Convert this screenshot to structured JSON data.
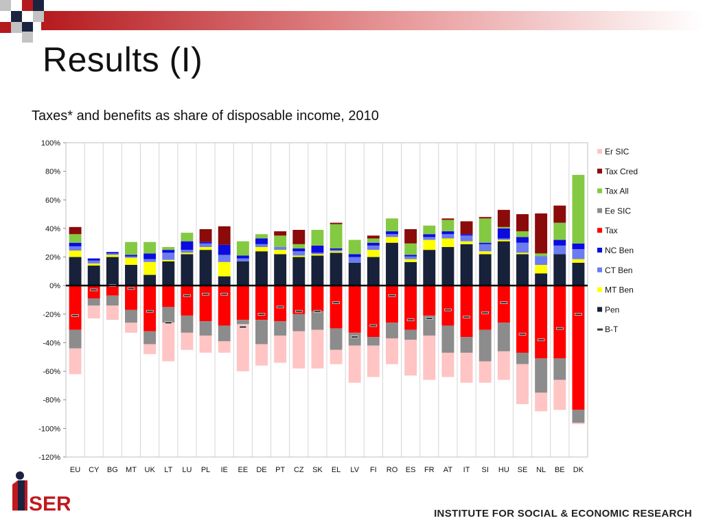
{
  "slide": {
    "title": "Results (I)",
    "subtitle": "Taxes* and benefits as share of disposable income, 2010",
    "logo_text": "iSER",
    "footer": "INSTITUTE FOR SOCIAL & ECONOMIC RESEARCH",
    "accent_color": "#c01a1f"
  },
  "chart_data": {
    "type": "bar",
    "stacked": true,
    "title": "Taxes* and benefits as share of disposable income, 2010",
    "ylim": [
      -120,
      100
    ],
    "yticks": [
      100,
      80,
      60,
      40,
      20,
      0,
      -20,
      -40,
      -60,
      -80,
      -100,
      -120
    ],
    "ytick_labels": [
      "100%",
      "80%",
      "60%",
      "40%",
      "20%",
      "0%",
      "-20%",
      "-40%",
      "-60%",
      "-80%",
      "-100%",
      "-120%"
    ],
    "grid": "vertical",
    "legend_position": "right",
    "categories": [
      "EU",
      "CY",
      "BG",
      "MT",
      "UK",
      "LT",
      "LU",
      "PL",
      "IE",
      "EE",
      "DE",
      "PT",
      "CZ",
      "SK",
      "EL",
      "LV",
      "FI",
      "RO",
      "ES",
      "FR",
      "AT",
      "IT",
      "SI",
      "HU",
      "SE",
      "NL",
      "BE",
      "DK"
    ],
    "positive_series": [
      {
        "name": "Pen",
        "color": "#17213a",
        "values": [
          20,
          14,
          20,
          14.5,
          7.5,
          17,
          22,
          25,
          6.5,
          17,
          24,
          22,
          20,
          21,
          23,
          16,
          20,
          30,
          16.5,
          25,
          27,
          29,
          22,
          31,
          22,
          8.5,
          22,
          16
        ]
      },
      {
        "name": "MT Ben",
        "color": "#ffff00",
        "values": [
          4.5,
          1.5,
          1.5,
          5,
          9,
          1,
          1,
          2,
          10,
          0,
          3,
          3,
          1,
          1,
          1,
          0,
          5,
          4,
          2,
          7,
          6,
          2,
          2,
          1,
          1,
          6,
          0,
          2.5
        ]
      },
      {
        "name": "CT Ben",
        "color": "#6b7cf0",
        "values": [
          3,
          2,
          1,
          1,
          2,
          5,
          2,
          2.5,
          5,
          2,
          2,
          2,
          3,
          1,
          1,
          4,
          3,
          2,
          2,
          2,
          3,
          4,
          5,
          1,
          7,
          6,
          6,
          7
        ]
      },
      {
        "name": "NC Ben",
        "color": "#0b0bdd",
        "values": [
          2.5,
          1.5,
          1,
          1,
          4,
          2,
          6,
          1,
          7,
          2,
          4,
          0,
          2,
          5,
          1,
          2,
          2,
          2,
          1,
          2,
          2,
          1,
          1,
          7,
          4,
          0,
          4,
          4
        ]
      },
      {
        "name": "Tax All",
        "color": "#84c942",
        "values": [
          6,
          0,
          0,
          9,
          8,
          2,
          6,
          0,
          0,
          10,
          3,
          8,
          3,
          11,
          17,
          10,
          3,
          9,
          8,
          6,
          8,
          0,
          17,
          1,
          4,
          2,
          12,
          48
        ]
      },
      {
        "name": "Tax Cred",
        "color": "#8b0a0a",
        "values": [
          5,
          0,
          0,
          0,
          0,
          0,
          0,
          9,
          13,
          0,
          0,
          3,
          10,
          0,
          1,
          0,
          2,
          0,
          10,
          0,
          1,
          9,
          1,
          12,
          12,
          28,
          12,
          0
        ]
      }
    ],
    "negative_series": [
      {
        "name": "Tax",
        "color": "#ff0000",
        "values": [
          -31,
          -9,
          -7,
          -17,
          -32,
          -15,
          -21,
          -25,
          -28,
          -24,
          -24,
          -25,
          -20,
          -18,
          -30,
          -33,
          -36,
          -26,
          -31,
          -21,
          -28,
          -36,
          -31,
          -26,
          -47,
          -51,
          -51,
          -87
        ]
      },
      {
        "name": "Ee SIC",
        "color": "#8c8c8c",
        "values": [
          -13,
          -5,
          -7,
          -9,
          -9,
          -11,
          -12,
          -10,
          -11,
          -3,
          -17,
          -10,
          -12,
          -13,
          -15,
          -9,
          -6,
          -11,
          -7,
          -14,
          -19,
          -11,
          -22,
          -20,
          -8,
          -24,
          -15,
          -9
        ]
      },
      {
        "name": "Er SIC",
        "color": "#ffc4c4",
        "values": [
          -18,
          -9,
          -10,
          -7,
          -7,
          -27,
          -12,
          -12,
          -8,
          -33,
          -15,
          -19,
          -26,
          -27,
          -10,
          -26,
          -22,
          -18,
          -25,
          -31,
          -17,
          -21,
          -15,
          -20,
          -28,
          -13,
          -21,
          -1
        ]
      }
    ],
    "bt_series": {
      "name": "B-T",
      "values": [
        -21,
        -3,
        0,
        -2,
        -18,
        -26,
        -7,
        -6,
        -6,
        -29,
        -20,
        -15,
        -18,
        -18,
        -12,
        -36,
        -28,
        -7,
        -24,
        -23,
        -17,
        -22,
        -19,
        -12,
        -34,
        -38,
        -30,
        -20
      ]
    },
    "legend_order": [
      "Er SIC",
      "Tax Cred",
      "Tax All",
      "Ee SIC",
      "Tax",
      "NC Ben",
      "CT Ben",
      "MT Ben",
      "Pen",
      "B-T"
    ]
  }
}
